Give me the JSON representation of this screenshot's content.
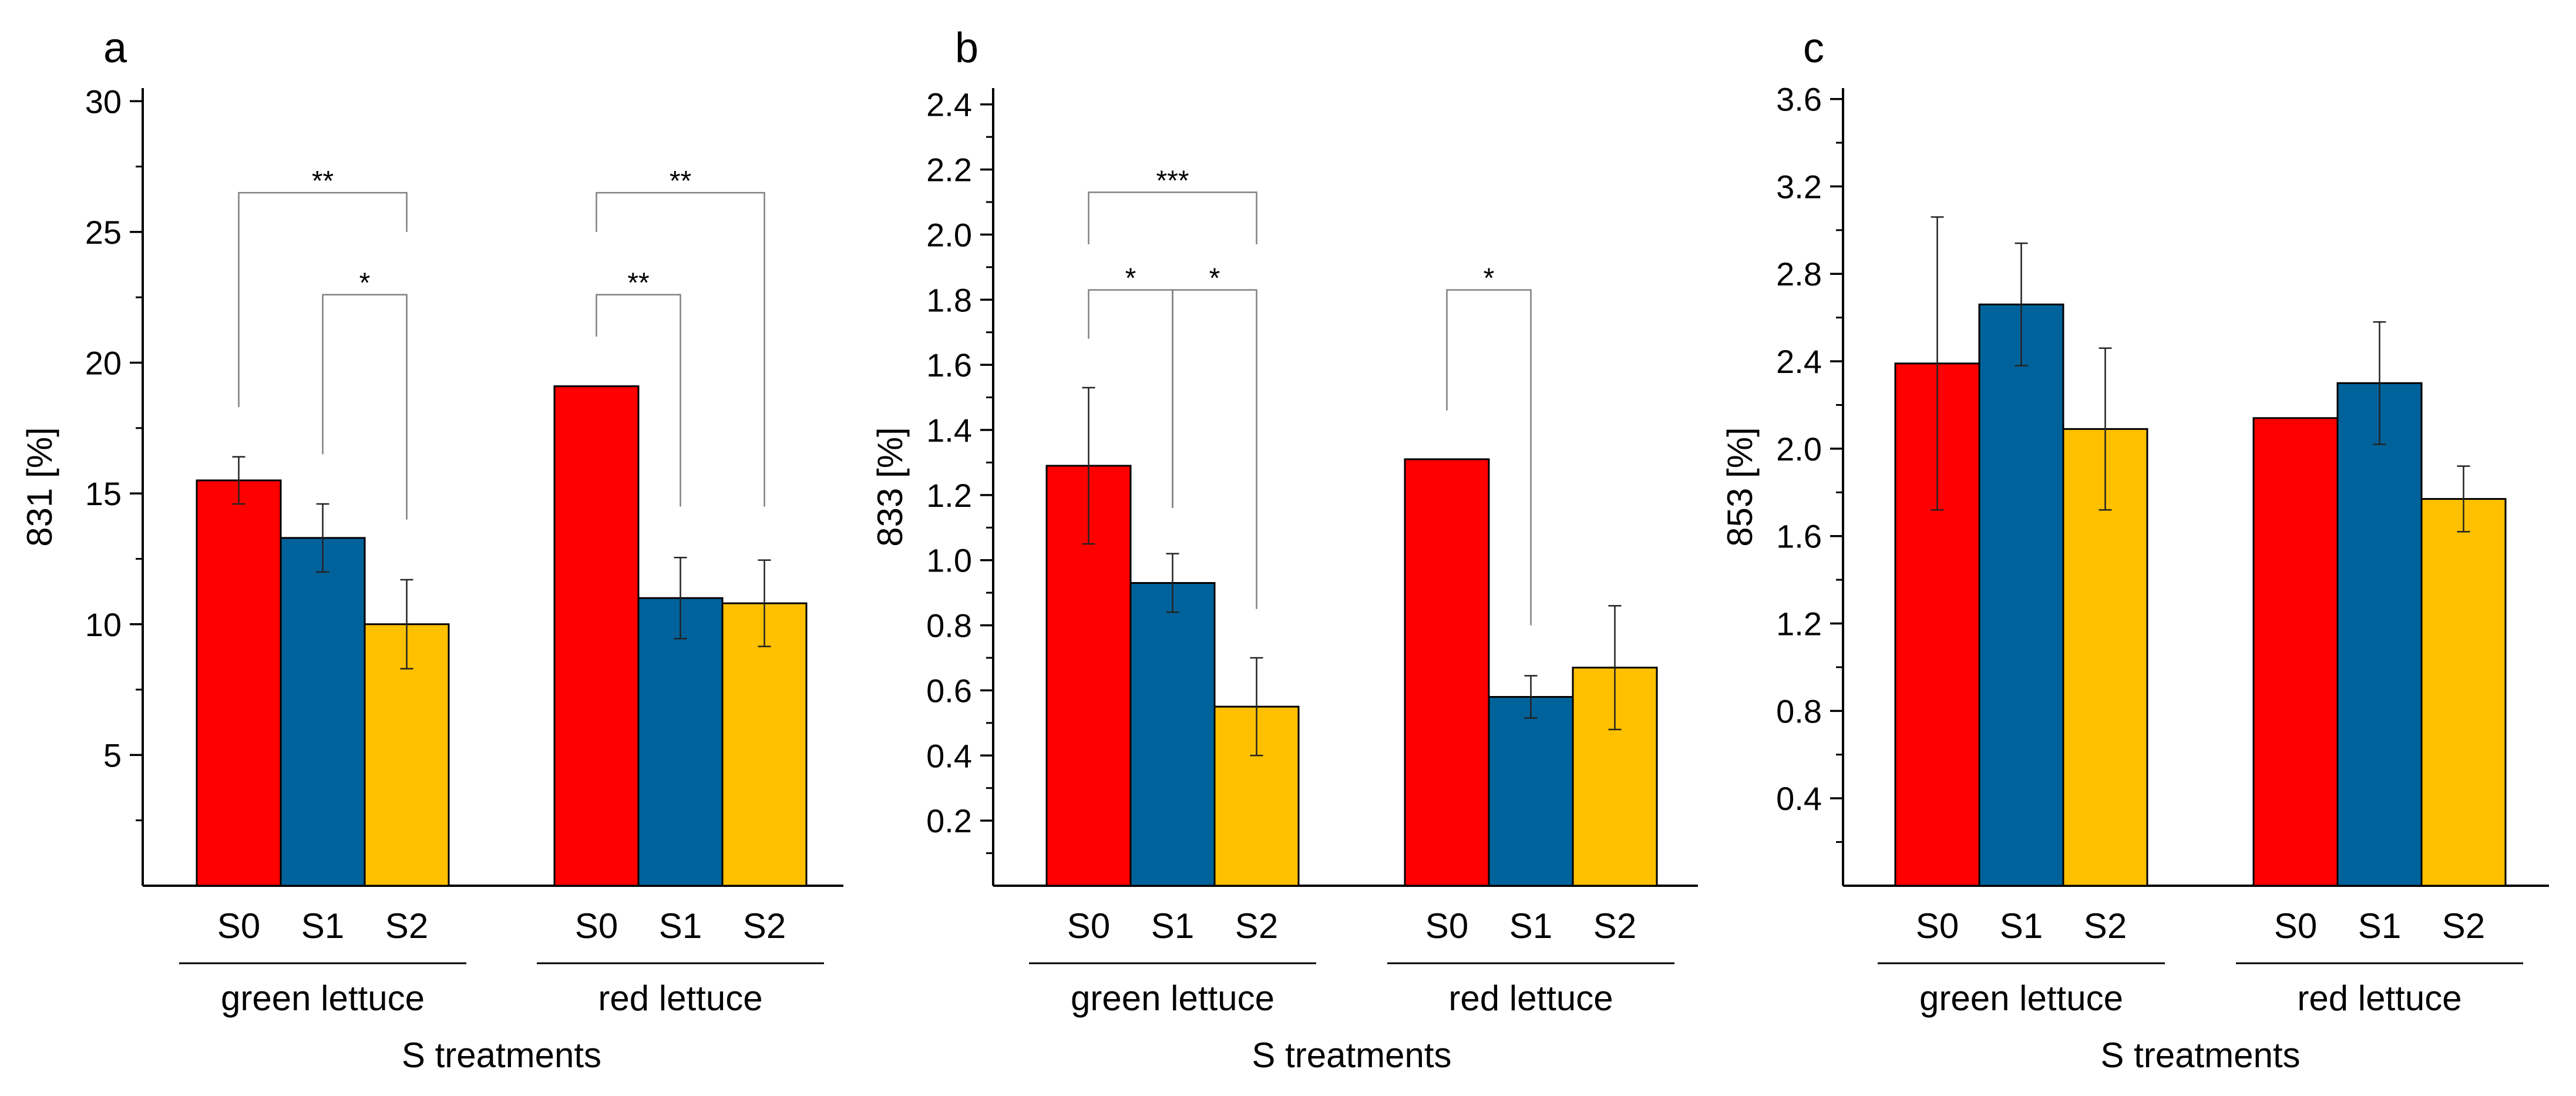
{
  "colors": {
    "S0": "#ff0000",
    "S1": "#00629b",
    "S2": "#ffc000",
    "axis": "#000000",
    "bracket": "#808080"
  },
  "chart_data": [
    {
      "panel": "a",
      "type": "bar",
      "ylabel": "831 [%]",
      "xlabel": "S treatments",
      "ylim": [
        0,
        30.5
      ],
      "yticks": [
        5,
        10,
        15,
        20,
        25,
        30
      ],
      "yticklabels": [
        "5",
        "10",
        "15",
        "20",
        "25",
        "30"
      ],
      "minor_step": 2.5,
      "groups": [
        {
          "name": "green lettuce",
          "bars": [
            {
              "category": "S0",
              "value": 15.5,
              "err": 0.9
            },
            {
              "category": "S1",
              "value": 13.3,
              "err": 1.3
            },
            {
              "category": "S2",
              "value": 10.0,
              "err": 1.7
            }
          ]
        },
        {
          "name": "red lettuce",
          "bars": [
            {
              "category": "S0",
              "value": 19.1,
              "err": null
            },
            {
              "category": "S1",
              "value": 11.0,
              "err": 1.55
            },
            {
              "category": "S2",
              "value": 10.8,
              "err": 1.65
            }
          ]
        }
      ],
      "significance": [
        {
          "group": 0,
          "from": 0,
          "to": 2,
          "label": "**",
          "level": 26.5,
          "start": 18.3,
          "end": 25.0
        },
        {
          "group": 0,
          "from": 1,
          "to": 2,
          "label": "*",
          "level": 22.6,
          "start": 16.5,
          "end": 14.0
        },
        {
          "group": 1,
          "from": 0,
          "to": 2,
          "label": "**",
          "level": 26.5,
          "start": 25.0,
          "end": 14.5
        },
        {
          "group": 1,
          "from": 0,
          "to": 1,
          "label": "**",
          "level": 22.6,
          "start": 21.0,
          "end": 14.5
        }
      ]
    },
    {
      "panel": "b",
      "type": "bar",
      "ylabel": "833 [%]",
      "xlabel": "S treatments",
      "ylim": [
        0,
        2.45
      ],
      "yticks": [
        0.2,
        0.4,
        0.6,
        0.8,
        1.0,
        1.2,
        1.4,
        1.6,
        1.8,
        2.0,
        2.2,
        2.4
      ],
      "yticklabels": [
        "0.2",
        "0.4",
        "0.6",
        "0.8",
        "1.0",
        "1.2",
        "1.4",
        "1.6",
        "1.8",
        "2.0",
        "2.2",
        "2.4"
      ],
      "minor_step": 0.1,
      "groups": [
        {
          "name": "green lettuce",
          "bars": [
            {
              "category": "S0",
              "value": 1.29,
              "err": 0.24
            },
            {
              "category": "S1",
              "value": 0.93,
              "err": 0.09
            },
            {
              "category": "S2",
              "value": 0.55,
              "err": 0.15
            }
          ]
        },
        {
          "name": "red lettuce",
          "bars": [
            {
              "category": "S0",
              "value": 1.31,
              "err": null
            },
            {
              "category": "S1",
              "value": 0.58,
              "err": 0.065
            },
            {
              "category": "S2",
              "value": 0.67,
              "err": 0.19
            }
          ]
        }
      ],
      "significance": [
        {
          "group": 0,
          "from": 0,
          "to": 2,
          "label": "***",
          "level": 2.13,
          "start": 1.97,
          "end": 1.97
        },
        {
          "group": 0,
          "from": 0,
          "to": 1,
          "label": "*",
          "level": 1.83,
          "start": 1.68,
          "end": 1.16
        },
        {
          "group": 0,
          "from": 1,
          "to": 2,
          "label": "*",
          "level": 1.83,
          "start": 1.16,
          "end": 0.85
        },
        {
          "group": 1,
          "from": 0,
          "to": 1,
          "label": "*",
          "level": 1.83,
          "start": 1.46,
          "end": 0.8
        }
      ]
    },
    {
      "panel": "c",
      "type": "bar",
      "ylabel": "853 [%]",
      "xlabel": "S treatments",
      "ylim": [
        0,
        3.65
      ],
      "yticks": [
        0.4,
        0.8,
        1.2,
        1.6,
        2.0,
        2.4,
        2.8,
        3.2,
        3.6
      ],
      "yticklabels": [
        "0.4",
        "0.8",
        "1.2",
        "1.6",
        "2.0",
        "2.4",
        "2.8",
        "3.2",
        "3.6"
      ],
      "minor_step": 0.2,
      "groups": [
        {
          "name": "green lettuce",
          "bars": [
            {
              "category": "S0",
              "value": 2.39,
              "err": 0.67
            },
            {
              "category": "S1",
              "value": 2.66,
              "err": 0.28
            },
            {
              "category": "S2",
              "value": 2.09,
              "err": 0.37
            }
          ]
        },
        {
          "name": "red lettuce",
          "bars": [
            {
              "category": "S0",
              "value": 2.14,
              "err": null
            },
            {
              "category": "S1",
              "value": 2.3,
              "err": 0.28
            },
            {
              "category": "S2",
              "value": 1.77,
              "err": 0.15
            }
          ]
        }
      ],
      "significance": []
    }
  ]
}
